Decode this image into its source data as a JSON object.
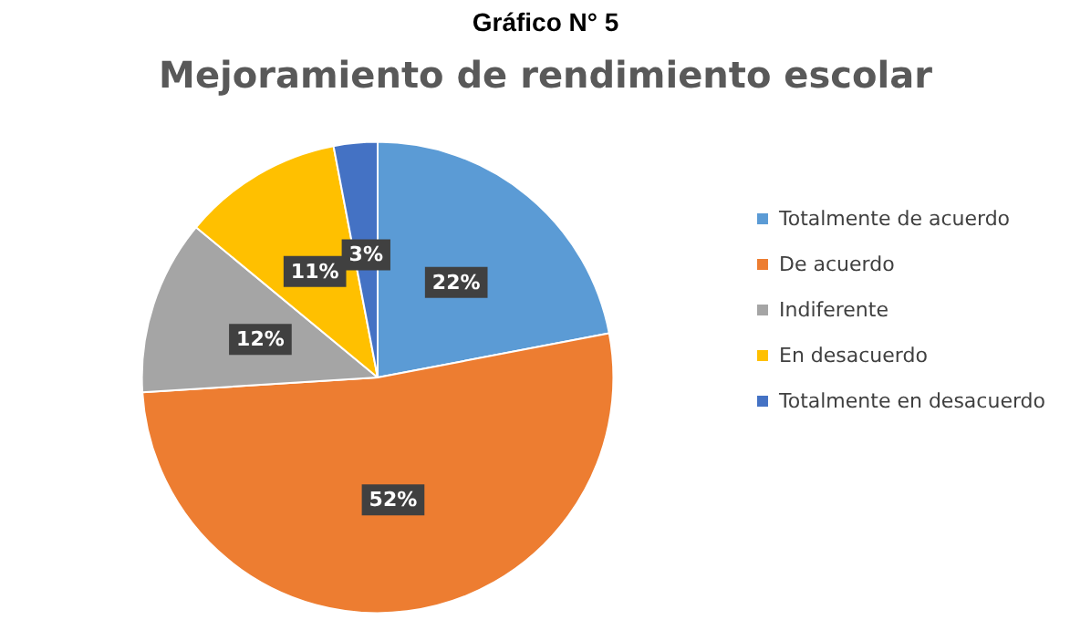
{
  "chart_data": {
    "type": "pie",
    "title": "Gráfico N° 5",
    "subtitle": "Mejoramiento de rendimiento escolar",
    "categories": [
      "Totalmente de acuerdo",
      "De acuerdo",
      "Indiferente",
      "En desacuerdo",
      "Totalmente en desacuerdo"
    ],
    "values": [
      22,
      52,
      12,
      11,
      3
    ],
    "colors": [
      "#5b9bd5",
      "#ed7d31",
      "#a5a5a5",
      "#ffc000",
      "#4472c4"
    ],
    "value_labels": [
      "22%",
      "52%",
      "12%",
      "11%",
      "3%"
    ],
    "legend": "right"
  }
}
